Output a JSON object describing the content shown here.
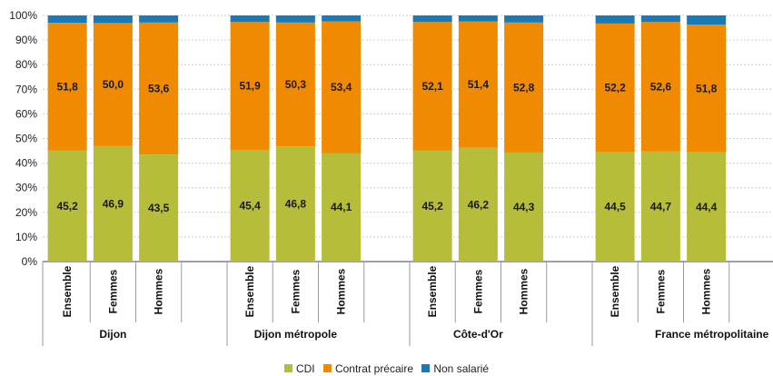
{
  "chart_data": {
    "type": "bar",
    "stacked": true,
    "y_axis": {
      "ylim": [
        0,
        100
      ],
      "ticks": [
        "0%",
        "10%",
        "20%",
        "30%",
        "40%",
        "50%",
        "60%",
        "70%",
        "80%",
        "90%",
        "100%"
      ]
    },
    "grid": true,
    "legend_position": "bottom",
    "groups": [
      {
        "label": "Dijon",
        "categories": [
          "Ensemble",
          "Femmes",
          "Hommes"
        ],
        "cdi": [
          45.2,
          46.9,
          43.5
        ],
        "precaire": [
          51.8,
          50.0,
          53.6
        ],
        "cdi_labels": [
          "45,2",
          "46,9",
          "43,5"
        ],
        "precaire_labels": [
          "51,8",
          "50,0",
          "53,6"
        ]
      },
      {
        "label": "Dijon métropole",
        "categories": [
          "Ensemble",
          "Femmes",
          "Hommes"
        ],
        "cdi": [
          45.4,
          46.8,
          44.1
        ],
        "precaire": [
          51.9,
          50.3,
          53.4
        ],
        "cdi_labels": [
          "45,4",
          "46,8",
          "44,1"
        ],
        "precaire_labels": [
          "51,9",
          "50,3",
          "53,4"
        ]
      },
      {
        "label": "Côte-d'Or",
        "categories": [
          "Ensemble",
          "Femmes",
          "Hommes"
        ],
        "cdi": [
          45.2,
          46.2,
          44.3
        ],
        "precaire": [
          52.1,
          51.4,
          52.8
        ],
        "cdi_labels": [
          "45,2",
          "46,2",
          "44,3"
        ],
        "precaire_labels": [
          "52,1",
          "51,4",
          "52,8"
        ]
      },
      {
        "label": "France métropolitaine",
        "categories": [
          "Ensemble",
          "Femmes",
          "Hommes"
        ],
        "cdi": [
          44.5,
          44.7,
          44.4
        ],
        "precaire": [
          52.2,
          52.6,
          51.8
        ],
        "cdi_labels": [
          "44,5",
          "44,7",
          "44,4"
        ],
        "precaire_labels": [
          "52,2",
          "52,6",
          "51,8"
        ]
      }
    ],
    "series": [
      {
        "name": "CDI",
        "key": "cdi",
        "color": "#b5bd3a"
      },
      {
        "name": "Contrat précaire",
        "key": "precaire",
        "color": "#f08a00"
      },
      {
        "name": "Non salarié",
        "key": "nonsal",
        "color": "#1a7ab5"
      }
    ]
  },
  "legend": {
    "items": [
      {
        "label": "CDI",
        "color": "#b5bd3a"
      },
      {
        "label": "Contrat précaire",
        "color": "#f08a00"
      },
      {
        "label": "Non salarié",
        "color": "#1a7ab5"
      }
    ]
  }
}
